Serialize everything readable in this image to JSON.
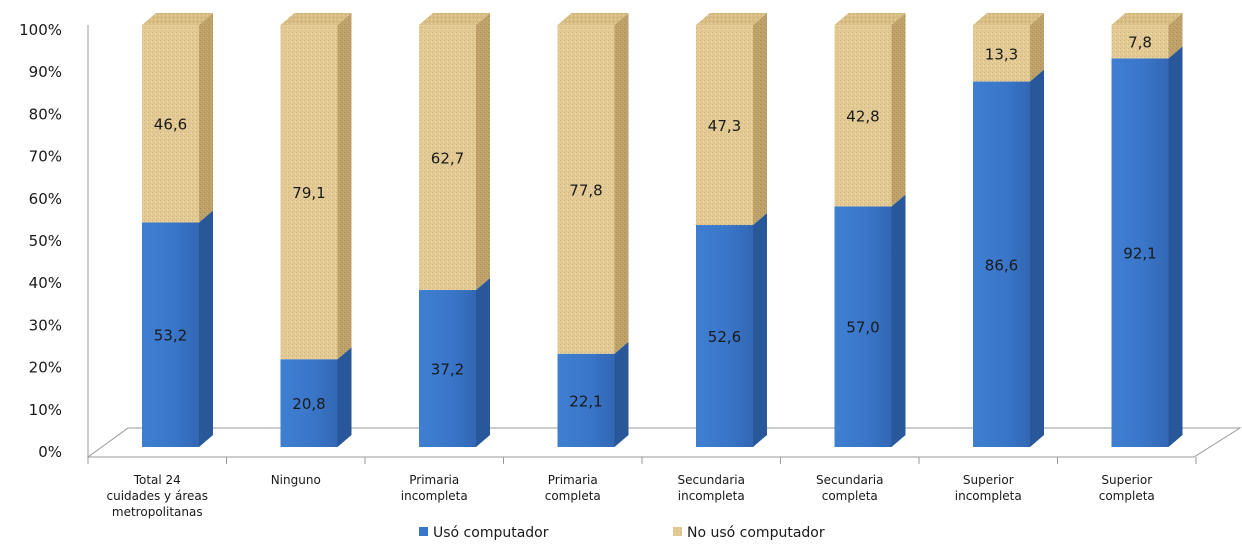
{
  "chart_data": {
    "type": "bar",
    "stacked": true,
    "style": "3d-stacked-100-percent",
    "categories": [
      [
        "Total 24",
        "cuidades y áreas",
        "metropolitanas"
      ],
      [
        "Ninguno"
      ],
      [
        "Primaria",
        "incompleta"
      ],
      [
        "Primaria",
        "completa"
      ],
      [
        "Secundaria",
        "incompleta"
      ],
      [
        "Secundaria",
        "completa"
      ],
      [
        "Superior",
        "incompleta"
      ],
      [
        "Superior",
        "completa"
      ]
    ],
    "series": [
      {
        "name": "Usó computador",
        "color": "#3A76C9",
        "values": [
          53.2,
          20.8,
          37.2,
          22.1,
          52.6,
          57.0,
          86.6,
          92.1
        ],
        "labels": [
          "53,2",
          "20,8",
          "37,2",
          "22,1",
          "52,6",
          "57,0",
          "86,6",
          "92,1"
        ]
      },
      {
        "name": "No usó computador",
        "color": "#E4CB95",
        "values": [
          46.6,
          79.1,
          62.7,
          77.8,
          47.3,
          42.8,
          13.3,
          7.8
        ],
        "labels": [
          "46,6",
          "79,1",
          "62,7",
          "77,8",
          "47,3",
          "42,8",
          "13,3",
          "7,8"
        ]
      }
    ],
    "yticks": [
      "0%",
      "10%",
      "20%",
      "30%",
      "40%",
      "50%",
      "60%",
      "70%",
      "80%",
      "90%",
      "100%"
    ],
    "ylim": [
      0,
      100
    ],
    "grid": false,
    "legend_position": "bottom"
  }
}
